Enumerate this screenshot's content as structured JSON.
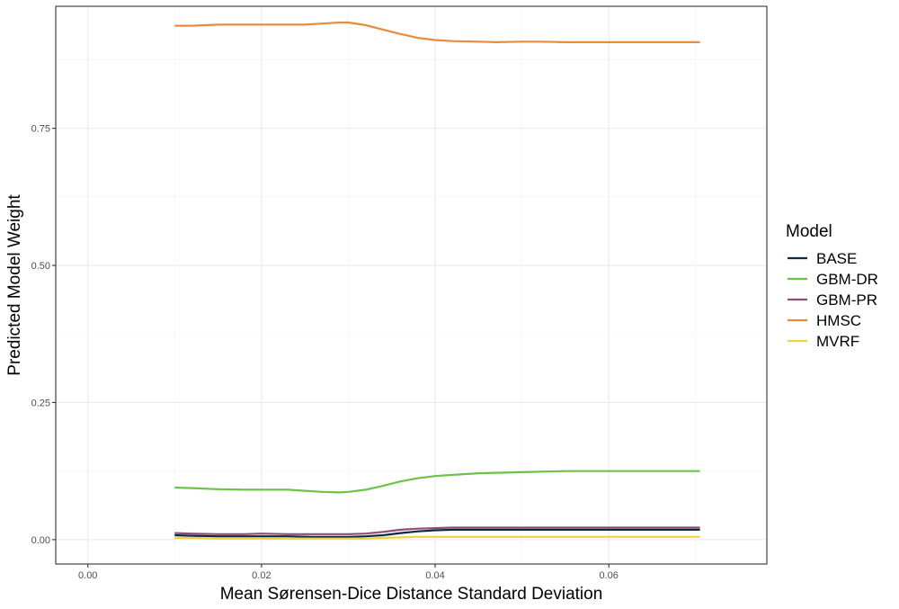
{
  "chart_data": {
    "type": "line",
    "title": "",
    "xlabel": "Mean Sørensen-Dice Distance Standard Deviation",
    "ylabel": "Predicted Model Weight",
    "xlim": [
      -0.0037,
      0.0782
    ],
    "ylim": [
      -0.0445,
      0.9725
    ],
    "x_ticks": [
      0.0,
      0.02,
      0.04,
      0.06
    ],
    "x_tick_labels": [
      "0.00",
      "0.02",
      "0.04",
      "0.06"
    ],
    "y_ticks": [
      0.0,
      0.25,
      0.5,
      0.75
    ],
    "y_tick_labels": [
      "0.00",
      "0.25",
      "0.50",
      "0.75"
    ],
    "grid": true,
    "legend": {
      "title": "Model",
      "placement": "right"
    },
    "series": [
      {
        "name": "BASE",
        "color": "#0d2a45",
        "x": [
          0.01,
          0.012,
          0.015,
          0.018,
          0.02,
          0.023,
          0.026,
          0.028,
          0.03,
          0.032,
          0.034,
          0.036,
          0.038,
          0.04,
          0.042,
          0.045,
          0.05,
          0.055,
          0.06,
          0.065,
          0.0705
        ],
        "y": [
          0.008,
          0.007,
          0.006,
          0.006,
          0.006,
          0.006,
          0.005,
          0.005,
          0.005,
          0.006,
          0.008,
          0.012,
          0.015,
          0.017,
          0.018,
          0.018,
          0.018,
          0.018,
          0.018,
          0.018,
          0.018
        ]
      },
      {
        "name": "GBM-DR",
        "color": "#6cc24a",
        "x": [
          0.01,
          0.012,
          0.015,
          0.018,
          0.02,
          0.023,
          0.025,
          0.027,
          0.029,
          0.03,
          0.032,
          0.034,
          0.036,
          0.038,
          0.04,
          0.042,
          0.045,
          0.05,
          0.055,
          0.06,
          0.065,
          0.0705
        ],
        "y": [
          0.095,
          0.094,
          0.092,
          0.091,
          0.091,
          0.091,
          0.089,
          0.087,
          0.086,
          0.087,
          0.091,
          0.098,
          0.106,
          0.112,
          0.116,
          0.118,
          0.121,
          0.123,
          0.125,
          0.125,
          0.125,
          0.125
        ]
      },
      {
        "name": "GBM-PR",
        "color": "#8e4e73",
        "x": [
          0.01,
          0.012,
          0.015,
          0.018,
          0.02,
          0.023,
          0.026,
          0.028,
          0.03,
          0.032,
          0.034,
          0.036,
          0.038,
          0.04,
          0.042,
          0.045,
          0.05,
          0.055,
          0.06,
          0.065,
          0.0705
        ],
        "y": [
          0.012,
          0.011,
          0.01,
          0.01,
          0.011,
          0.01,
          0.01,
          0.01,
          0.01,
          0.011,
          0.014,
          0.018,
          0.02,
          0.021,
          0.022,
          0.022,
          0.022,
          0.022,
          0.022,
          0.022,
          0.022
        ]
      },
      {
        "name": "HMSC",
        "color": "#e88b3c",
        "x": [
          0.01,
          0.012,
          0.015,
          0.018,
          0.02,
          0.023,
          0.025,
          0.027,
          0.029,
          0.03,
          0.032,
          0.034,
          0.036,
          0.038,
          0.04,
          0.042,
          0.045,
          0.047,
          0.05,
          0.052,
          0.055,
          0.06,
          0.065,
          0.0705
        ],
        "y": [
          0.937,
          0.937,
          0.939,
          0.939,
          0.939,
          0.939,
          0.939,
          0.941,
          0.943,
          0.943,
          0.938,
          0.93,
          0.922,
          0.915,
          0.911,
          0.909,
          0.908,
          0.907,
          0.908,
          0.908,
          0.907,
          0.907,
          0.907,
          0.907
        ]
      },
      {
        "name": "MVRF",
        "color": "#f0d23c",
        "x": [
          0.01,
          0.012,
          0.015,
          0.018,
          0.02,
          0.023,
          0.026,
          0.028,
          0.03,
          0.032,
          0.034,
          0.036,
          0.038,
          0.04,
          0.042,
          0.045,
          0.05,
          0.055,
          0.06,
          0.065,
          0.0705
        ],
        "y": [
          0.003,
          0.003,
          0.002,
          0.002,
          0.002,
          0.002,
          0.002,
          0.002,
          0.002,
          0.002,
          0.003,
          0.004,
          0.005,
          0.005,
          0.005,
          0.005,
          0.005,
          0.005,
          0.005,
          0.005,
          0.005
        ]
      }
    ]
  }
}
